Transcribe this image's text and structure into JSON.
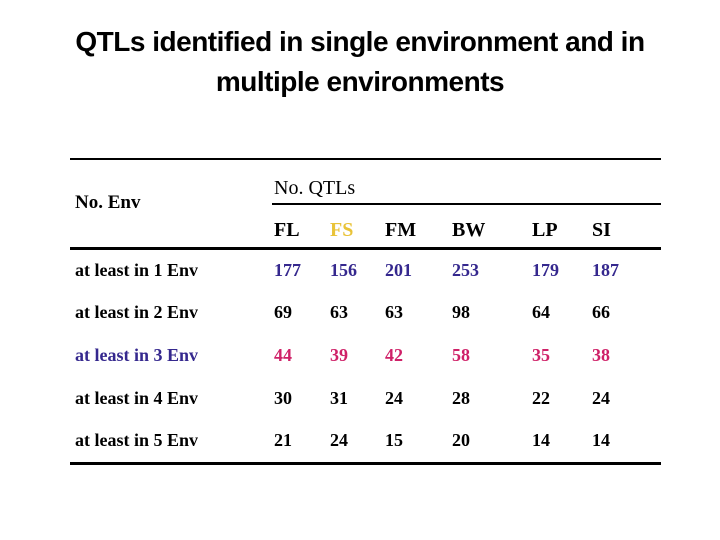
{
  "title": {
    "line1": "QTLs identified in single environment and in",
    "line2": "multiple environments"
  },
  "colors": {
    "background": "#FFFFFF",
    "text": "#000000",
    "gold_accent": "#E9C338",
    "indigo_accent": "#35288E",
    "crimson_accent": "#CF2168"
  },
  "table": {
    "row_header": "No. Env",
    "group_header": "No. QTLs",
    "columns": [
      {
        "label": "FL",
        "color": "#000000"
      },
      {
        "label": "FS",
        "color": "#E9C338"
      },
      {
        "label": "FM",
        "color": "#000000"
      },
      {
        "label": "BW",
        "color": "#000000"
      },
      {
        "label": "LP",
        "color": "#000000"
      },
      {
        "label": "SI",
        "color": "#000000"
      }
    ],
    "rows": [
      {
        "label": "at least in 1 Env",
        "label_color": "#000000",
        "value_color": "#35288E",
        "values": [
          "177",
          "156",
          "201",
          "253",
          "179",
          "187"
        ]
      },
      {
        "label": "at least in 2 Env",
        "label_color": "#000000",
        "value_color": "#000000",
        "values": [
          "69",
          "63",
          "63",
          "98",
          "64",
          "66"
        ]
      },
      {
        "label": "at least in 3 Env",
        "label_color": "#35288E",
        "value_color": "#CF2168",
        "values": [
          "44",
          "39",
          "42",
          "58",
          "35",
          "38"
        ]
      },
      {
        "label": "at least in 4 Env",
        "label_color": "#000000",
        "value_color": "#000000",
        "values": [
          "30",
          "31",
          "24",
          "28",
          "22",
          "24"
        ]
      },
      {
        "label": "at least in 5 Env",
        "label_color": "#000000",
        "value_color": "#000000",
        "values": [
          "21",
          "24",
          "15",
          "20",
          "14",
          "14"
        ]
      }
    ]
  },
  "chart_data": {
    "type": "table",
    "title": "QTLs identified in single environment and in multiple environments",
    "columns": [
      "No. Env",
      "FL",
      "FS",
      "FM",
      "BW",
      "LP",
      "SI"
    ],
    "rows": [
      [
        "at least in 1 Env",
        177,
        156,
        201,
        253,
        179,
        187
      ],
      [
        "at least in 2 Env",
        69,
        63,
        63,
        98,
        64,
        66
      ],
      [
        "at least in 3 Env",
        44,
        39,
        42,
        58,
        35,
        38
      ],
      [
        "at least in 4 Env",
        30,
        31,
        24,
        28,
        22,
        24
      ],
      [
        "at least in 5 Env",
        21,
        24,
        15,
        20,
        14,
        14
      ]
    ]
  }
}
